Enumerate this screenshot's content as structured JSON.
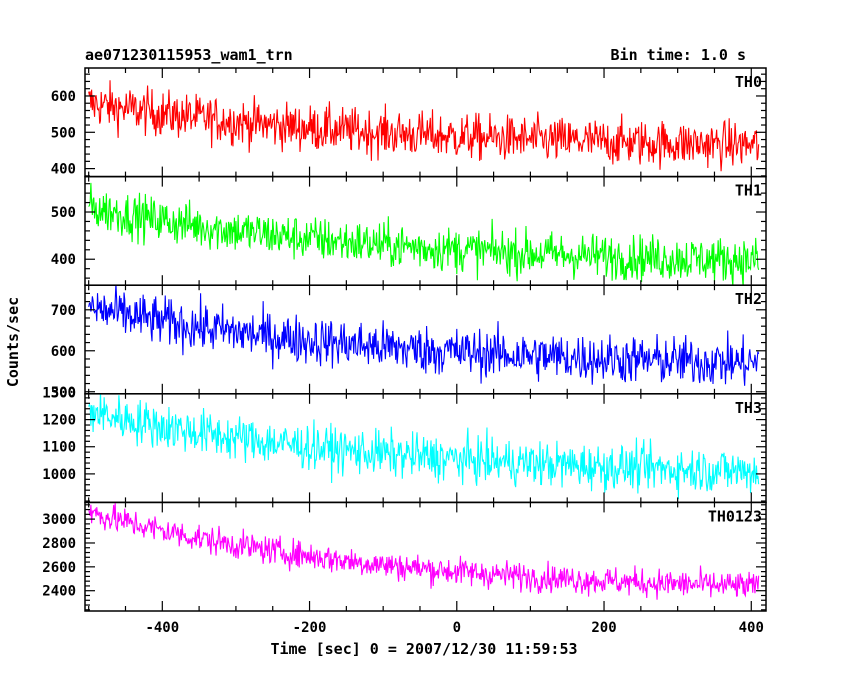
{
  "header": {
    "title": "ae071230115953_wam1_trn",
    "bin_time": "Bin time: 1.0 s"
  },
  "chart_data": {
    "type": "line",
    "xlabel": "Time [sec] 0 = 2007/12/30 11:59:53",
    "ylabel": "Counts/sec",
    "xlim": [
      -505,
      420
    ],
    "x_ticks": [
      -400,
      -200,
      0,
      200,
      400
    ],
    "grid": false,
    "panels": [
      {
        "name": "TH0",
        "color": "#ff0000",
        "ylim": [
          378,
          677
        ],
        "y_ticks": [
          400,
          500,
          600
        ],
        "start": 580,
        "end": 452,
        "noise": 32,
        "x_start": -500,
        "x_end": 410
      },
      {
        "name": "TH1",
        "color": "#00ff00",
        "ylim": [
          345,
          575
        ],
        "y_ticks": [
          400,
          500
        ],
        "start": 510,
        "end": 385,
        "noise": 24,
        "x_start": -500,
        "x_end": 410
      },
      {
        "name": "TH2",
        "color": "#0000ff",
        "ylim": [
          495,
          760
        ],
        "y_ticks": [
          500,
          600,
          700
        ],
        "start": 705,
        "end": 555,
        "noise": 30,
        "x_start": -500,
        "x_end": 410
      },
      {
        "name": "TH3",
        "color": "#00ffff",
        "ylim": [
          895,
          1295
        ],
        "y_ticks": [
          1000,
          1100,
          1200,
          1300
        ],
        "start": 1230,
        "end": 985,
        "noise": 42,
        "x_start": -500,
        "x_end": 410
      },
      {
        "name": "TH0123",
        "color": "#ff00ff",
        "ylim": [
          2230,
          3140
        ],
        "y_ticks": [
          2400,
          2600,
          2800,
          3000
        ],
        "start": 3060,
        "end": 2365,
        "noise": 60,
        "x_start": -500,
        "x_end": 410
      }
    ]
  }
}
